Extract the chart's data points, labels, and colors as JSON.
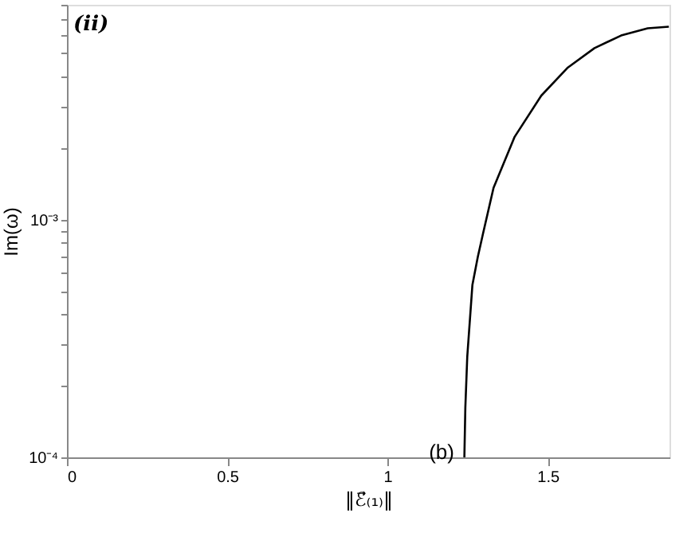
{
  "chart_data": {
    "type": "line",
    "xlabel": "‖ℰ⃗₍₁₎‖",
    "ylabel": "Im(ω)",
    "annotations": [
      "(ii)",
      "(b)"
    ],
    "x": [
      1.24,
      1.243,
      1.249,
      1.265,
      1.282,
      1.298,
      1.331,
      1.397,
      1.48,
      1.563,
      1.646,
      1.729,
      1.812,
      1.878
    ],
    "series": [
      {
        "color": "#000000",
        "values": [
          0.0001,
          0.000162,
          0.000265,
          0.00053,
          0.000697,
          0.00087,
          0.00136,
          0.00223,
          0.00332,
          0.00436,
          0.00526,
          0.00594,
          0.00637,
          0.00647
        ]
      }
    ],
    "xlim": [
      0,
      1.88
    ],
    "xticks": [
      0,
      0.5,
      1,
      1.5
    ],
    "ylim": [
      0.0001,
      0.008
    ],
    "log": true,
    "yticks": [
      {
        "value": 0.0001,
        "label": "10⁻⁴"
      },
      {
        "value": 0.0002,
        "label": null
      },
      {
        "value": 0.0003,
        "label": null
      },
      {
        "value": 0.0004,
        "label": null
      },
      {
        "value": 0.0005,
        "label": null
      },
      {
        "value": 0.0006,
        "label": null
      },
      {
        "value": 0.0007,
        "label": null
      },
      {
        "value": 0.0008,
        "label": null
      },
      {
        "value": 0.0009,
        "label": null
      },
      {
        "value": 0.001,
        "label": "10⁻³"
      },
      {
        "value": 0.002,
        "label": null
      },
      {
        "value": 0.003,
        "label": null
      },
      {
        "value": 0.004,
        "label": null
      },
      {
        "value": 0.005,
        "label": null
      },
      {
        "value": 0.006,
        "label": null
      },
      {
        "value": 0.007,
        "label": null
      },
      {
        "value": 0.008,
        "label": null
      }
    ],
    "grid": false,
    "marker": "none",
    "line_style": "solid"
  }
}
